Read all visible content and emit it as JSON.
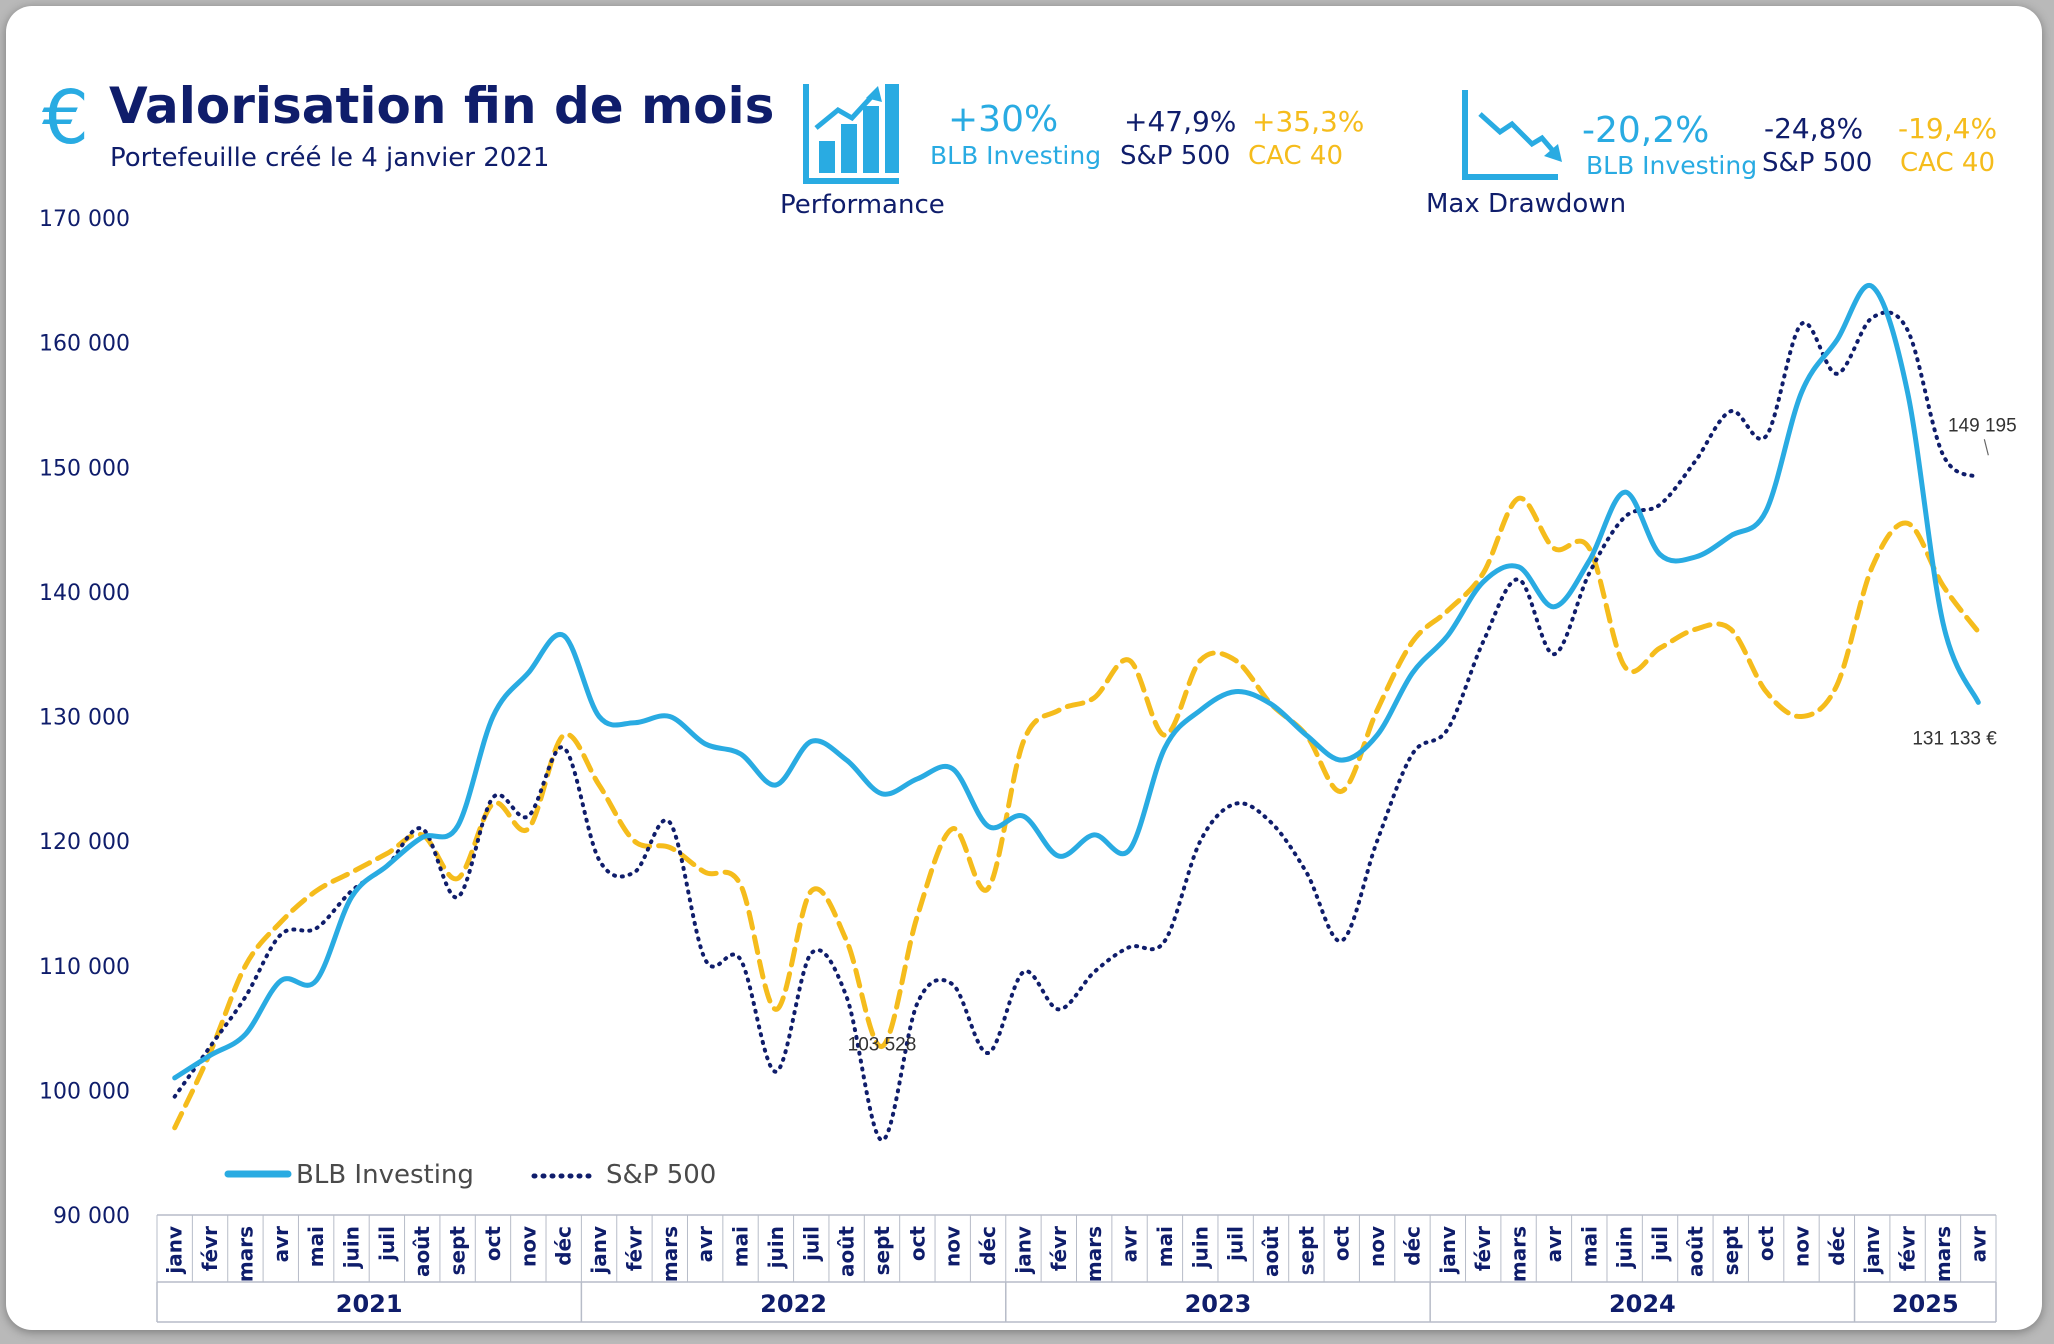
{
  "header": {
    "title": "Valorisation fin de mois",
    "subtitle": "Portefeuille créé le 4 janvier 2021",
    "currency_symbol": "€"
  },
  "performance": {
    "label": "Performance",
    "blb_value": "+30%",
    "blb_name": "BLB Investing",
    "sp_value": "+47,9%",
    "sp_name": "S&P 500",
    "cac_value": "+35,3%",
    "cac_name": "CAC 40"
  },
  "drawdown": {
    "label": "Max Drawdown",
    "blb_value": "-20,2%",
    "blb_name": "BLB Investing",
    "sp_value": "-24,8%",
    "sp_name": "S&P 500",
    "cac_value": "-19,4%",
    "cac_name": "CAC 40"
  },
  "colors": {
    "blb": "#29abe2",
    "sp": "#0f1d6b",
    "cac": "#f5bc1c"
  },
  "chart_data": {
    "type": "line",
    "ylim": [
      90000,
      170000
    ],
    "yticks": [
      "90 000",
      "100 000",
      "110 000",
      "120 000",
      "130 000",
      "140 000",
      "150 000",
      "160 000",
      "170 000"
    ],
    "ytick_values": [
      90000,
      100000,
      110000,
      120000,
      130000,
      140000,
      150000,
      160000,
      170000
    ],
    "months": [
      "janv",
      "févr",
      "mars",
      "avr",
      "mai",
      "juin",
      "juil",
      "août",
      "sept",
      "oct",
      "nov",
      "déc",
      "janv",
      "févr",
      "mars",
      "avr",
      "mai",
      "juin",
      "juil",
      "août",
      "sept",
      "oct",
      "nov",
      "déc",
      "janv",
      "févr",
      "mars",
      "avr",
      "mai",
      "juin",
      "juil",
      "août",
      "sept",
      "oct",
      "nov",
      "déc",
      "janv",
      "févr",
      "mars",
      "avr",
      "mai",
      "juin",
      "juil",
      "août",
      "sept",
      "oct",
      "nov",
      "déc",
      "janv",
      "févr",
      "mars",
      "avr"
    ],
    "years": [
      {
        "label": "2021",
        "months": 12
      },
      {
        "label": "2022",
        "months": 12
      },
      {
        "label": "2023",
        "months": 12
      },
      {
        "label": "2024",
        "months": 12
      },
      {
        "label": "2025",
        "months": 4
      }
    ],
    "series": [
      {
        "name": "BLB Investing",
        "style": "solid",
        "values": [
          101000,
          102800,
          104500,
          108800,
          108800,
          115500,
          118000,
          120300,
          121200,
          130000,
          133500,
          136500,
          130000,
          129500,
          130000,
          127800,
          127000,
          124500,
          128000,
          126500,
          123800,
          125000,
          125800,
          121200,
          122000,
          118800,
          120500,
          119300,
          127500,
          130500,
          132000,
          131000,
          128500,
          126500,
          128500,
          133500,
          136500,
          140800,
          142000,
          138800,
          142500,
          148000,
          143000,
          142800,
          144500,
          146500,
          156000,
          160200,
          164500,
          156000,
          137500,
          131133
        ]
      },
      {
        "name": "S&P 500",
        "style": "dotted",
        "values": [
          99500,
          103500,
          107500,
          112500,
          113000,
          116000,
          118000,
          121000,
          115500,
          123500,
          122000,
          127500,
          118500,
          117500,
          121500,
          110500,
          110500,
          101500,
          111000,
          107500,
          96000,
          107000,
          108500,
          103000,
          109500,
          106500,
          109500,
          111500,
          112000,
          120000,
          123000,
          121500,
          117500,
          112000,
          120000,
          127000,
          129000,
          136000,
          141000,
          135000,
          141500,
          146000,
          147000,
          150500,
          154500,
          152500,
          161500,
          157500,
          162000,
          161000,
          151000,
          149195
        ]
      },
      {
        "name": "CAC 40",
        "style": "dashed",
        "values": [
          97000,
          103000,
          110000,
          113500,
          116000,
          117500,
          119000,
          120500,
          117000,
          123000,
          121000,
          128500,
          124500,
          120000,
          119500,
          117500,
          116500,
          106500,
          116000,
          112000,
          103528,
          114000,
          121000,
          116200,
          128000,
          130500,
          131500,
          134500,
          128500,
          134500,
          134500,
          131000,
          128500,
          124000,
          130500,
          136000,
          138500,
          141500,
          147500,
          143500,
          143500,
          134000,
          135500,
          137000,
          137000,
          132000,
          130000,
          132500,
          142000,
          145500,
          140500,
          136800
        ]
      }
    ],
    "annotations": [
      {
        "text": "103 528",
        "series": 2,
        "index": 20
      },
      {
        "text": "149 195",
        "series": 1,
        "index": 51
      },
      {
        "text": "131 133 €",
        "series": 0,
        "index": 51
      }
    ]
  }
}
